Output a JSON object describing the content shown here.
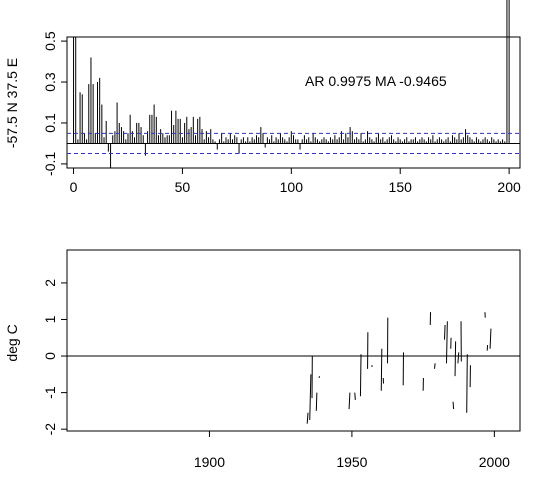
{
  "chart_data": [
    {
      "type": "bar",
      "ylabel": "-57.5 N 37.5 E",
      "xlim": [
        -3,
        205
      ],
      "ylim": [
        -0.12,
        0.52
      ],
      "xticks": [
        0,
        50,
        100,
        150,
        200
      ],
      "yticks": [
        -0.1,
        0.1,
        0.3,
        0.5
      ],
      "ytick_labels": [
        "-0.1",
        "0.1",
        "0.3",
        "0.5"
      ],
      "annotation": "AR 0.9975  MA -0.9465",
      "zero_line": 0,
      "confidence_bounds": [
        0.049,
        -0.049
      ],
      "lag": [
        0,
        1,
        2,
        3,
        4,
        5,
        6,
        7,
        8,
        9,
        10,
        11,
        12,
        13,
        14,
        15,
        16,
        17,
        18,
        19,
        20,
        21,
        22,
        23,
        24,
        25,
        26,
        27,
        28,
        29,
        30,
        31,
        32,
        33,
        34,
        35,
        36,
        37,
        38,
        39,
        40,
        41,
        42,
        43,
        44,
        45,
        46,
        47,
        48,
        49,
        50,
        51,
        52,
        53,
        54,
        55,
        56,
        57,
        58,
        59,
        60,
        61,
        62,
        63,
        64,
        65,
        66,
        67,
        68,
        69,
        70,
        71,
        72,
        73,
        74,
        75,
        76,
        77,
        78,
        79,
        80,
        81,
        82,
        83,
        84,
        85,
        86,
        87,
        88,
        89,
        90,
        91,
        92,
        93,
        94,
        95,
        96,
        97,
        98,
        99,
        100,
        101,
        102,
        103,
        104,
        105,
        106,
        107,
        108,
        109,
        110,
        111,
        112,
        113,
        114,
        115,
        116,
        117,
        118,
        119,
        120,
        121,
        122,
        123,
        124,
        125,
        126,
        127,
        128,
        129,
        130,
        131,
        132,
        133,
        134,
        135,
        136,
        137,
        138,
        139,
        140,
        141,
        142,
        143,
        144,
        145,
        146,
        147,
        148,
        149,
        150,
        151,
        152,
        153,
        154,
        155,
        156,
        157,
        158,
        159,
        160,
        161,
        162,
        163,
        164,
        165,
        166,
        167,
        168,
        169,
        170,
        171,
        172,
        173,
        174,
        175,
        176,
        177,
        178,
        179,
        180,
        181,
        182,
        183,
        184,
        185,
        186,
        187,
        188,
        189,
        190,
        191,
        192,
        193,
        194,
        195,
        196,
        197,
        198,
        199,
        200
      ],
      "values": [
        0.52,
        0.52,
        0.02,
        0.25,
        0.24,
        0.05,
        0.02,
        0.29,
        0.42,
        0.29,
        0.05,
        0.3,
        0.32,
        0.19,
        0.03,
        0.11,
        -0.04,
        -0.12,
        0.04,
        0.06,
        0.2,
        0.1,
        0.08,
        0.06,
        0.02,
        0.05,
        0.14,
        0.06,
        0.03,
        0.1,
        0.1,
        0.08,
        0.04,
        -0.06,
        0.06,
        0.14,
        0.14,
        0.19,
        0.13,
        0.04,
        0.07,
        0.05,
        0.03,
        0.04,
        0.04,
        0.16,
        0.09,
        0.16,
        0.12,
        0.12,
        0.03,
        0.1,
        0.13,
        0.07,
        0.08,
        0.13,
        0.04,
        0.12,
        0.13,
        0.07,
        0.02,
        0.06,
        0.03,
        0.07,
        0.02,
        0.01,
        -0.03,
        0.02,
        0.05,
        0.01,
        0.03,
        0.02,
        0.05,
        0.02,
        0.04,
        0.03,
        -0.05,
        0.02,
        0.03,
        0.01,
        0.03,
        0.01,
        0.03,
        0.02,
        0.04,
        0.03,
        0.08,
        0.05,
        -0.02,
        0.03,
        0.02,
        0.04,
        0.01,
        0.03,
        0.02,
        0.05,
        0.03,
        0.02,
        0.01,
        0.03,
        0.06,
        0.04,
        0.02,
        0.02,
        -0.03,
        0.02,
        0.04,
        0.02,
        0.03,
        0.01,
        0.05,
        0.03,
        0.02,
        0.01,
        0.02,
        0.03,
        0.02,
        0.01,
        0.03,
        0.02,
        0.04,
        0.02,
        0.03,
        0.06,
        0.02,
        0.05,
        0.03,
        0.08,
        0.06,
        0.02,
        0.03,
        0.02,
        0.05,
        0.01,
        0.02,
        0.06,
        0.03,
        0.02,
        0.01,
        0.03,
        0.05,
        0.02,
        0.03,
        0.01,
        0.02,
        0.03,
        0.04,
        0.02,
        0.01,
        0.03,
        0.02,
        0.01,
        0.02,
        0.03,
        0.01,
        0.02,
        0.02,
        0.03,
        0.01,
        0.02,
        0.03,
        0.02,
        0.01,
        0.03,
        0.02,
        0.04,
        0.01,
        0.02,
        0.03,
        0.02,
        0.01,
        0.02,
        0.03,
        0.01,
        0.04,
        0.03,
        0.02,
        0.05,
        0.02,
        0.03,
        0.07,
        0.04,
        0.03,
        0.02,
        0.01,
        0.03,
        0.02,
        0.01,
        0.02,
        0.03,
        0.02,
        0.01,
        0.03,
        0.02,
        0.01,
        0.02,
        0.01,
        0.02,
        0.01
      ]
    },
    {
      "type": "line",
      "ylabel": "deg C",
      "xlim": [
        1850,
        2009
      ],
      "ylim": [
        -2.05,
        2.9
      ],
      "xticks": [
        1900,
        1950,
        2000
      ],
      "yticks": [
        -2,
        -1,
        0,
        1,
        2
      ],
      "ytick_labels": [
        "-2",
        "-1",
        "0",
        "1",
        "2"
      ],
      "zero_line": 0,
      "segments": [
        [
          [
            1934.3,
            -1.85
          ],
          [
            1934.6,
            -1.55
          ]
        ],
        [
          [
            1935.2,
            -1.75
          ],
          [
            1935.6,
            -0.5
          ]
        ],
        [
          [
            1936.0,
            -1.15
          ],
          [
            1936.1,
            0.0
          ]
        ],
        [
          [
            1937.5,
            -1.5
          ],
          [
            1937.7,
            -1.0
          ]
        ],
        [
          [
            1938.5,
            -0.6
          ],
          [
            1938.6,
            -0.55
          ]
        ],
        [
          [
            1949.0,
            -1.45
          ],
          [
            1949.3,
            -1.0
          ]
        ],
        [
          [
            1951.0,
            -1.0
          ],
          [
            1951.2,
            -1.2
          ]
        ],
        [
          [
            1953.0,
            -1.1
          ],
          [
            1953.2,
            0.05
          ]
        ],
        [
          [
            1955.5,
            -0.35
          ],
          [
            1955.6,
            0.65
          ]
        ],
        [
          [
            1957.0,
            -0.25
          ],
          [
            1957.1,
            -0.3
          ]
        ],
        [
          [
            1960.3,
            -0.95
          ],
          [
            1960.5,
            0.2
          ]
        ],
        [
          [
            1961.0,
            -0.6
          ],
          [
            1961.1,
            -0.75
          ]
        ],
        [
          [
            1962.5,
            -0.2
          ],
          [
            1962.6,
            1.05
          ]
        ],
        [
          [
            1968.0,
            -0.8
          ],
          [
            1968.1,
            0.1
          ]
        ],
        [
          [
            1975.0,
            -0.95
          ],
          [
            1975.1,
            -0.6
          ]
        ],
        [
          [
            1977.5,
            0.85
          ],
          [
            1977.6,
            1.2
          ]
        ],
        [
          [
            1979.0,
            -0.35
          ],
          [
            1979.2,
            -0.2
          ]
        ],
        [
          [
            1982.5,
            0.45
          ],
          [
            1982.7,
            0.85
          ]
        ],
        [
          [
            1983.2,
            -0.2
          ],
          [
            1983.5,
            0.95
          ]
        ],
        [
          [
            1984.7,
            0.2
          ],
          [
            1984.8,
            0.5
          ]
        ],
        [
          [
            1985.5,
            -1.25
          ],
          [
            1985.7,
            -1.45
          ]
        ],
        [
          [
            1986.2,
            -0.55
          ],
          [
            1986.4,
            0.4
          ]
        ],
        [
          [
            1987.2,
            -0.2
          ],
          [
            1987.5,
            0.1
          ]
        ],
        [
          [
            1988.3,
            0.95
          ],
          [
            1988.4,
            -0.15
          ]
        ],
        [
          [
            1990.3,
            -1.55
          ],
          [
            1990.5,
            0.05
          ]
        ],
        [
          [
            1991.5,
            -0.85
          ],
          [
            1991.6,
            -0.25
          ]
        ],
        [
          [
            1996.7,
            1.2
          ],
          [
            1996.8,
            1.05
          ]
        ],
        [
          [
            1997.5,
            0.15
          ],
          [
            1997.6,
            0.3
          ]
        ],
        [
          [
            1998.5,
            0.2
          ],
          [
            1998.8,
            0.75
          ]
        ]
      ]
    }
  ]
}
